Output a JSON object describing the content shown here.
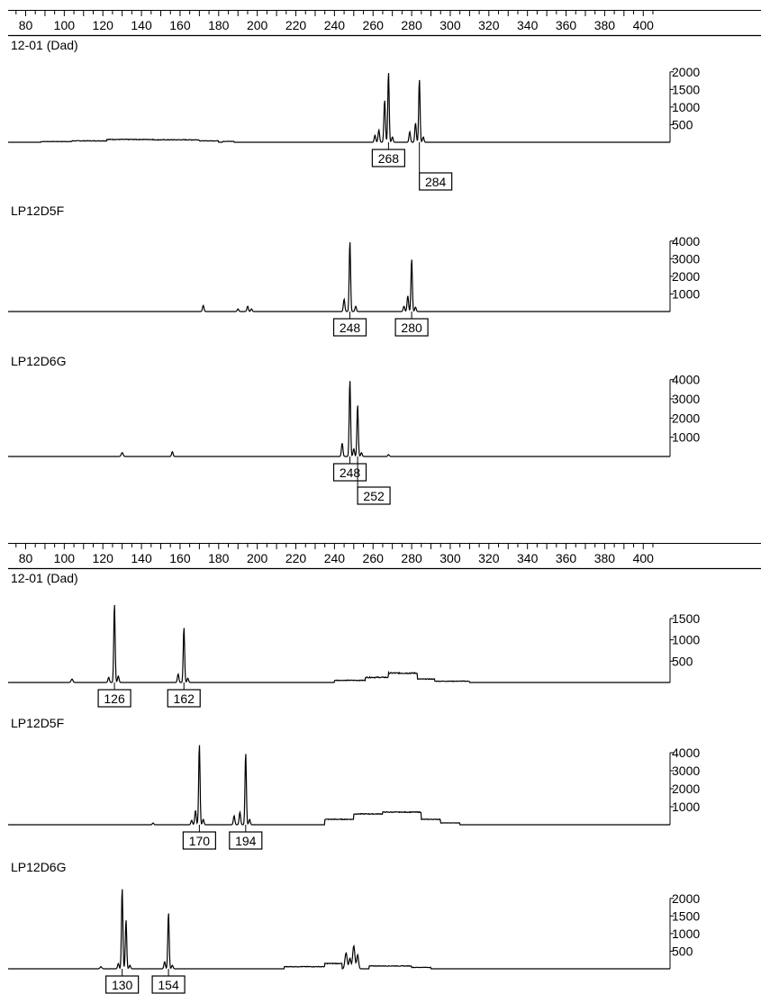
{
  "colors": {
    "trace": "#000000",
    "background": "#ffffff",
    "label_box": "#000000"
  },
  "chart_data": [
    {
      "type": "line",
      "panel": "top",
      "x_axis": {
        "min": 80,
        "max": 400,
        "tick_labels": [
          "80",
          "100",
          "120",
          "140",
          "160",
          "180",
          "200",
          "220",
          "240",
          "260",
          "280",
          "300",
          "320",
          "340",
          "360",
          "380",
          "400"
        ],
        "minor_step": 5
      },
      "series": [
        {
          "name": "12-01 (Dad)",
          "y_ticks": [
            "2000",
            "1500",
            "1000",
            "500"
          ],
          "ymax": 2250,
          "noise": [
            [
              88,
              104,
              20,
              6
            ],
            [
              104,
              122,
              40,
              8
            ],
            [
              122,
              146,
              80,
              10
            ],
            [
              146,
              170,
              70,
              10
            ],
            [
              170,
              180,
              40,
              6
            ],
            [
              182,
              188,
              25,
              4
            ]
          ],
          "peaks": [
            {
              "x": 261,
              "h": 200,
              "w": 1.2
            },
            {
              "x": 263,
              "h": 350,
              "w": 1.2
            },
            {
              "x": 266,
              "h": 1200,
              "w": 1.2
            },
            {
              "x": 268,
              "h": 2000,
              "w": 1.1
            },
            {
              "x": 270,
              "h": 150,
              "w": 1.2
            },
            {
              "x": 279,
              "h": 300,
              "w": 1.2
            },
            {
              "x": 282,
              "h": 550,
              "w": 1.2
            },
            {
              "x": 284,
              "h": 1800,
              "w": 1.1
            },
            {
              "x": 286,
              "h": 150,
              "w": 1.2
            }
          ],
          "labels": [
            {
              "x": 268,
              "text": "268",
              "level": 1
            },
            {
              "x": 284,
              "text": "284",
              "level": 2
            }
          ]
        },
        {
          "name": "LP12D5F",
          "y_ticks": [
            "4000",
            "3000",
            "2000",
            "1000"
          ],
          "ymax": 4500,
          "noise": [],
          "peaks": [
            {
              "x": 172,
              "h": 350,
              "w": 1.2
            },
            {
              "x": 190,
              "h": 150,
              "w": 1.2
            },
            {
              "x": 195,
              "h": 300,
              "w": 1.2
            },
            {
              "x": 197,
              "h": 150,
              "w": 1.2
            },
            {
              "x": 245,
              "h": 700,
              "w": 1.2
            },
            {
              "x": 248,
              "h": 4000,
              "w": 1.1
            },
            {
              "x": 251,
              "h": 300,
              "w": 1.2
            },
            {
              "x": 276,
              "h": 300,
              "w": 1.2
            },
            {
              "x": 278,
              "h": 900,
              "w": 1.2
            },
            {
              "x": 280,
              "h": 3000,
              "w": 1.1
            },
            {
              "x": 282,
              "h": 250,
              "w": 1.2
            }
          ],
          "labels": [
            {
              "x": 248,
              "text": "248",
              "level": 1
            },
            {
              "x": 280,
              "text": "280",
              "level": 1
            }
          ]
        },
        {
          "name": "LP12D6G",
          "y_ticks": [
            "4000",
            "3000",
            "2000",
            "1000"
          ],
          "ymax": 4500,
          "noise": [],
          "peaks": [
            {
              "x": 130,
              "h": 200,
              "w": 1.5
            },
            {
              "x": 156,
              "h": 250,
              "w": 1.2
            },
            {
              "x": 244,
              "h": 700,
              "w": 1.2
            },
            {
              "x": 248,
              "h": 4000,
              "w": 1.1
            },
            {
              "x": 250,
              "h": 400,
              "w": 1.2
            },
            {
              "x": 252,
              "h": 2700,
              "w": 1.1
            },
            {
              "x": 254,
              "h": 200,
              "w": 1.2
            },
            {
              "x": 268,
              "h": 100,
              "w": 1.2
            }
          ],
          "labels": [
            {
              "x": 248,
              "text": "248",
              "level": 1
            },
            {
              "x": 252,
              "text": "252",
              "level": 2
            }
          ]
        }
      ]
    },
    {
      "type": "line",
      "panel": "bottom",
      "x_axis": {
        "min": 80,
        "max": 400,
        "tick_labels": [
          "80",
          "100",
          "120",
          "140",
          "160",
          "180",
          "200",
          "220",
          "240",
          "260",
          "280",
          "300",
          "320",
          "340",
          "360",
          "380",
          "400"
        ],
        "minor_step": 5
      },
      "series": [
        {
          "name": "12-01 (Dad)",
          "y_ticks": [
            "1500",
            "1000",
            "500"
          ],
          "ymax": 1900,
          "noise": [
            [
              240,
              256,
              50,
              8
            ],
            [
              256,
              268,
              120,
              12
            ],
            [
              268,
              283,
              220,
              14
            ],
            [
              283,
              292,
              80,
              8
            ],
            [
              292,
              310,
              30,
              6
            ]
          ],
          "peaks": [
            {
              "x": 104,
              "h": 80,
              "w": 1.5
            },
            {
              "x": 123,
              "h": 120,
              "w": 1.2
            },
            {
              "x": 126,
              "h": 1850,
              "w": 1.1
            },
            {
              "x": 128,
              "h": 150,
              "w": 1.2
            },
            {
              "x": 159,
              "h": 200,
              "w": 1.2
            },
            {
              "x": 162,
              "h": 1300,
              "w": 1.1
            },
            {
              "x": 164,
              "h": 100,
              "w": 1.2
            }
          ],
          "labels": [
            {
              "x": 126,
              "text": "126",
              "level": 1
            },
            {
              "x": 162,
              "text": "162",
              "level": 1
            }
          ]
        },
        {
          "name": "LP12D5F",
          "y_ticks": [
            "4000",
            "3000",
            "2000",
            "1000"
          ],
          "ymax": 4500,
          "noise": [
            [
              235,
              250,
              300,
              20
            ],
            [
              250,
              265,
              600,
              20
            ],
            [
              265,
              285,
              700,
              20
            ],
            [
              285,
              295,
              300,
              15
            ],
            [
              295,
              305,
              100,
              8
            ]
          ],
          "peaks": [
            {
              "x": 146,
              "h": 100,
              "w": 1.2
            },
            {
              "x": 166,
              "h": 250,
              "w": 1.2
            },
            {
              "x": 168,
              "h": 800,
              "w": 1.2
            },
            {
              "x": 170,
              "h": 4500,
              "w": 1.1
            },
            {
              "x": 172,
              "h": 300,
              "w": 1.2
            },
            {
              "x": 188,
              "h": 500,
              "w": 1.2
            },
            {
              "x": 191,
              "h": 700,
              "w": 1.2
            },
            {
              "x": 194,
              "h": 4000,
              "w": 1.1
            },
            {
              "x": 196,
              "h": 300,
              "w": 1.2
            }
          ],
          "labels": [
            {
              "x": 170,
              "text": "170",
              "level": 1
            },
            {
              "x": 194,
              "text": "194",
              "level": 1
            }
          ]
        },
        {
          "name": "LP12D6G",
          "y_ticks": [
            "2000",
            "1500",
            "1000",
            "500"
          ],
          "ymax": 2250,
          "noise": [
            [
              214,
              235,
              60,
              8
            ],
            [
              235,
              244,
              150,
              10
            ],
            [
              258,
              280,
              80,
              8
            ],
            [
              280,
              290,
              40,
              6
            ]
          ],
          "peaks": [
            {
              "x": 119,
              "h": 60,
              "w": 1.5
            },
            {
              "x": 128,
              "h": 150,
              "w": 1.2
            },
            {
              "x": 130,
              "h": 2300,
              "w": 1.1
            },
            {
              "x": 132,
              "h": 1400,
              "w": 1.1
            },
            {
              "x": 134,
              "h": 100,
              "w": 1.2
            },
            {
              "x": 152,
              "h": 200,
              "w": 1.2
            },
            {
              "x": 154,
              "h": 1600,
              "w": 1.1
            },
            {
              "x": 156,
              "h": 100,
              "w": 1.2
            },
            {
              "x": 246,
              "h": 450,
              "w": 1.8
            },
            {
              "x": 248,
              "h": 300,
              "w": 1.5
            },
            {
              "x": 250,
              "h": 650,
              "w": 1.8
            },
            {
              "x": 252,
              "h": 400,
              "w": 1.5
            }
          ],
          "labels": [
            {
              "x": 130,
              "text": "130",
              "level": 1
            },
            {
              "x": 154,
              "text": "154",
              "level": 1
            }
          ]
        }
      ]
    }
  ]
}
